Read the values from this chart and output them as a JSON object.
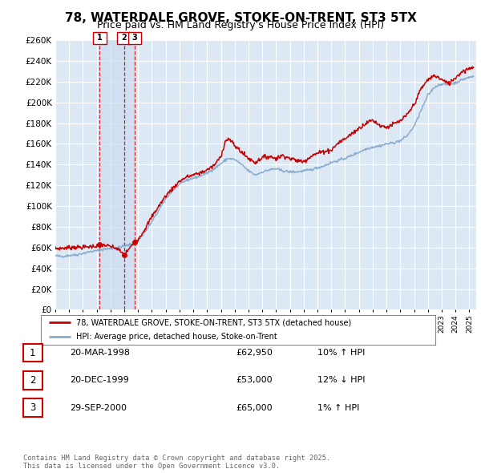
{
  "title": "78, WATERDALE GROVE, STOKE-ON-TRENT, ST3 5TX",
  "subtitle": "Price paid vs. HM Land Registry's House Price Index (HPI)",
  "title_fontsize": 11,
  "subtitle_fontsize": 9,
  "background_color": "#ffffff",
  "plot_bg_color": "#dce9f5",
  "grid_color": "#ffffff",
  "shade_color": "#ccddf0",
  "ylim": [
    0,
    260000
  ],
  "ytick_step": 20000,
  "xlim_start": 1995.0,
  "xlim_end": 2025.5,
  "legend_label_red": "78, WATERDALE GROVE, STOKE-ON-TRENT, ST3 5TX (detached house)",
  "legend_label_blue": "HPI: Average price, detached house, Stoke-on-Trent",
  "red_color": "#cc0000",
  "blue_color": "#88aacc",
  "sale_markers": [
    {
      "year": 1998.22,
      "price": 62950,
      "label": "1"
    },
    {
      "year": 1999.97,
      "price": 53000,
      "label": "2"
    },
    {
      "year": 2000.75,
      "price": 65000,
      "label": "3"
    }
  ],
  "sale_vlines": [
    1998.22,
    1999.97,
    2000.75
  ],
  "table_rows": [
    [
      "1",
      "20-MAR-1998",
      "£62,950",
      "10% ↑ HPI"
    ],
    [
      "2",
      "20-DEC-1999",
      "£53,000",
      "12% ↓ HPI"
    ],
    [
      "3",
      "29-SEP-2000",
      "£65,000",
      "1% ↑ HPI"
    ]
  ],
  "footnote": "Contains HM Land Registry data © Crown copyright and database right 2025.\nThis data is licensed under the Open Government Licence v3.0.",
  "xtick_years": [
    1995,
    1996,
    1997,
    1998,
    1999,
    2000,
    2001,
    2002,
    2003,
    2004,
    2005,
    2006,
    2007,
    2008,
    2009,
    2010,
    2011,
    2012,
    2013,
    2014,
    2015,
    2016,
    2017,
    2018,
    2019,
    2020,
    2021,
    2022,
    2023,
    2024,
    2025
  ]
}
